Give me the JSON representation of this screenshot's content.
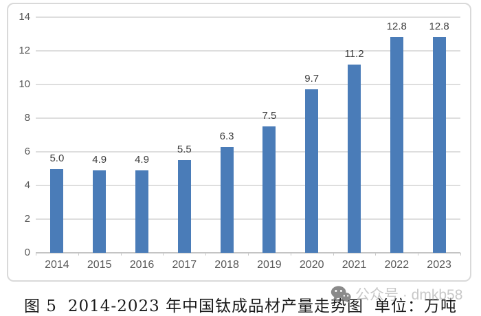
{
  "chart_data": {
    "type": "bar",
    "categories": [
      "2014",
      "2015",
      "2016",
      "2017",
      "2018",
      "2019",
      "2020",
      "2021",
      "2022",
      "2023"
    ],
    "values": [
      5.0,
      4.9,
      4.9,
      5.5,
      6.3,
      7.5,
      9.7,
      11.2,
      12.8,
      12.8
    ],
    "title": "2014-2023 年中国钛成品材产量走势图",
    "xlabel": "",
    "ylabel": "",
    "ylim": [
      0,
      14
    ],
    "yticks": [
      0,
      2,
      4,
      6,
      8,
      10,
      12,
      14
    ],
    "grid": true,
    "legend_position": "none",
    "data_labels_decimals": 1,
    "bar_color": "#4A7CB8",
    "gridline_color": "#DEDEDE",
    "axis_line_color": "#C4C4C4",
    "tick_label_color": "#595959",
    "data_label_color": "#3D3D3D"
  },
  "caption": {
    "figure_label": "图 5",
    "title": "2014-2023 年中国钛成品材产量走势图",
    "unit": "单位：万吨"
  },
  "watermark": {
    "icon": "wechat-icon",
    "text": "公众号 · dmkb58",
    "text_color": "#C8C8C8",
    "icon_color": "#8A8A8A"
  }
}
